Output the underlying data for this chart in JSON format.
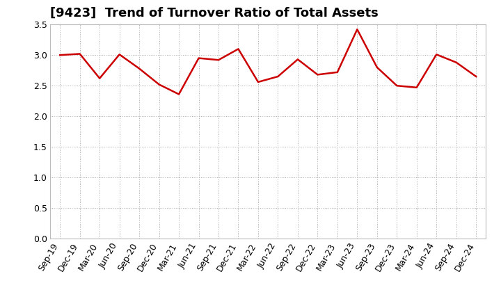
{
  "title": "[9423]  Trend of Turnover Ratio of Total Assets",
  "labels": [
    "Sep-19",
    "Dec-19",
    "Mar-20",
    "Jun-20",
    "Sep-20",
    "Dec-20",
    "Mar-21",
    "Jun-21",
    "Sep-21",
    "Dec-21",
    "Mar-22",
    "Jun-22",
    "Sep-22",
    "Dec-22",
    "Mar-23",
    "Jun-23",
    "Sep-23",
    "Dec-23",
    "Mar-24",
    "Jun-24",
    "Sep-24",
    "Dec-24"
  ],
  "values": [
    3.0,
    3.02,
    2.62,
    3.01,
    2.78,
    2.52,
    2.36,
    2.95,
    2.92,
    3.1,
    2.56,
    2.65,
    2.93,
    2.68,
    2.72,
    3.42,
    2.8,
    2.5,
    2.47,
    3.01,
    2.88,
    2.65
  ],
  "line_color": "#cc0000",
  "line_width": 1.8,
  "ylim": [
    0.0,
    3.5
  ],
  "yticks": [
    0.0,
    0.5,
    1.0,
    1.5,
    2.0,
    2.5,
    3.0,
    3.5
  ],
  "grid_color": "#aaaaaa",
  "background_color": "#ffffff",
  "title_fontsize": 13,
  "tick_fontsize": 9
}
